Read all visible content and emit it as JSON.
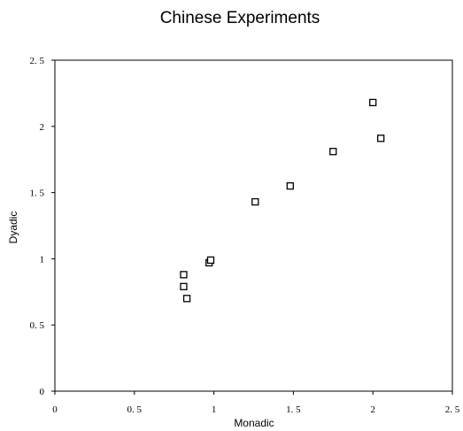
{
  "chart_data": {
    "type": "scatter",
    "title": "Chinese Experiments",
    "xlabel": "Monadic",
    "ylabel": "Dyadic",
    "xlim": [
      0,
      2.5
    ],
    "ylim": [
      0,
      2.5
    ],
    "xticks": [
      0,
      0.5,
      1,
      1.5,
      2,
      2.5
    ],
    "yticks": [
      0,
      0.5,
      1,
      1.5,
      2,
      2.5
    ],
    "xtick_labels": [
      "0",
      "0. 5",
      "1",
      "1. 5",
      "2",
      "2. 5"
    ],
    "ytick_labels": [
      "0",
      "0. 5",
      "1",
      "1. 5",
      "2",
      "2. 5"
    ],
    "grid": false,
    "legend": "none",
    "marker": "open-square",
    "points": [
      {
        "x": 0.81,
        "y": 0.88
      },
      {
        "x": 0.81,
        "y": 0.79
      },
      {
        "x": 0.83,
        "y": 0.7
      },
      {
        "x": 0.97,
        "y": 0.97
      },
      {
        "x": 0.98,
        "y": 0.99
      },
      {
        "x": 1.26,
        "y": 1.43
      },
      {
        "x": 1.48,
        "y": 1.55
      },
      {
        "x": 1.75,
        "y": 1.81
      },
      {
        "x": 2.0,
        "y": 2.18
      },
      {
        "x": 2.05,
        "y": 1.91
      }
    ]
  }
}
